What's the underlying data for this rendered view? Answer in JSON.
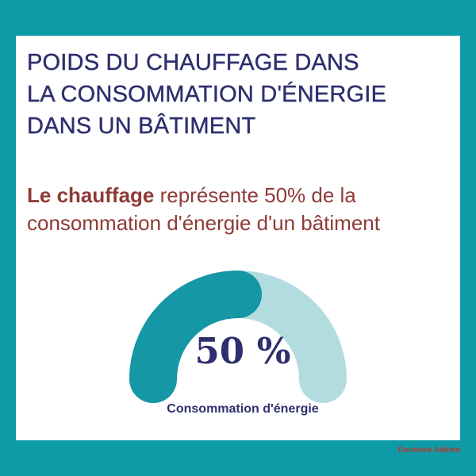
{
  "colors": {
    "frame": "#0E9BA8",
    "card": "#FFFFFF",
    "title": "#2E2F6E",
    "accent": "#8E3B36",
    "gauge_filled": "#1597A5",
    "gauge_remaining": "#B3DCE0",
    "value_text": "#2E2F6E",
    "source_text": "#B33A2E"
  },
  "title_lines": [
    "POIDS DU CHAUFFAGE DANS",
    "LA CONSOMMATION D'ÉNERGIE",
    "DANS UN BÂTIMENT"
  ],
  "subtitle": {
    "strong": "Le chauffage",
    "rest_line1": " représente 50% de la",
    "line2": "consommation d'énergie d'un bâtiment"
  },
  "gauge": {
    "value_label": "50 %",
    "caption": "Consommation d'énergie"
  },
  "source": "Données Adème",
  "chart_data": {
    "type": "pie",
    "style": "half-donut gauge",
    "values": [
      50,
      50
    ],
    "value_max": 100,
    "value_label": "50 %",
    "label": "Consommation d'énergie",
    "title": "POIDS DU CHAUFFAGE DANS LA CONSOMMATION D'ÉNERGIE DANS UN BÂTIMENT"
  }
}
